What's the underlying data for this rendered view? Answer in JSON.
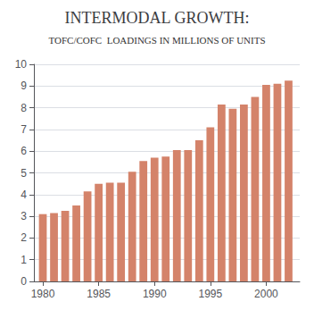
{
  "chart_data": {
    "type": "bar",
    "title": "INTERMODAL GROWTH:",
    "subtitle": "TOFC/COFC  LOADINGS IN MILLIONS OF UNITS",
    "x": [
      1980,
      1981,
      1982,
      1983,
      1984,
      1985,
      1986,
      1987,
      1988,
      1989,
      1990,
      1991,
      1992,
      1993,
      1994,
      1995,
      1996,
      1997,
      1998,
      1999,
      2000,
      2001,
      2002
    ],
    "values": [
      3.1,
      3.15,
      3.25,
      3.5,
      4.15,
      4.5,
      4.55,
      4.55,
      5.05,
      5.55,
      5.7,
      5.75,
      6.05,
      6.05,
      6.5,
      7.1,
      8.15,
      7.95,
      8.15,
      8.5,
      9.05,
      9.1,
      9.25
    ],
    "color": "#d4836a",
    "xlim": [
      1979.2,
      2003.0
    ],
    "xticks": [
      1980,
      1985,
      1990,
      1995,
      2000
    ],
    "ylim": [
      0,
      10
    ],
    "yticks": [
      0,
      1,
      2,
      3,
      4,
      5,
      6,
      7,
      8,
      9,
      10
    ],
    "grid": true
  }
}
